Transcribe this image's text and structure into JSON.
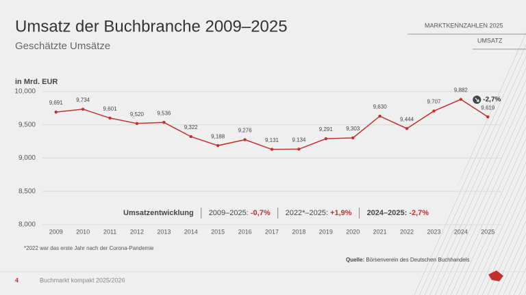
{
  "slide": {
    "title": "Umsatz der Buchbranche 2009–2025",
    "subtitle": "Geschätzte Umsätze",
    "section": "MARKTKENNZAHLEN 2025",
    "topic": "UMSATZ",
    "footnote": "*2022 war das erste Jahr nach der Corona-Pandemie",
    "source_label": "Quelle:",
    "source": "Börsenverein des Deutschen Buchhandels",
    "page": "4",
    "footer": "Buchmarkt kompakt 2025/2026"
  },
  "chart_data": {
    "type": "line",
    "y_label": "in Mrd. EUR",
    "categories": [
      "2009",
      "2010",
      "2011",
      "2012",
      "2013",
      "2014",
      "2015",
      "2016",
      "2017",
      "2018",
      "2019",
      "2020",
      "2021",
      "2022",
      "2023",
      "2024",
      "2025"
    ],
    "series": [
      {
        "name": "Umsatz",
        "color": "#c0302c",
        "values": [
          9.691,
          9.734,
          9.601,
          9.52,
          9.536,
          9.322,
          9.188,
          9.276,
          9.131,
          9.134,
          9.291,
          9.303,
          9.63,
          9.444,
          9.707,
          9.882,
          9.619
        ],
        "value_labels": [
          "9,691",
          "9,734",
          "9,601",
          "9,520",
          "9,536",
          "9,322",
          "9,188",
          "9,276",
          "9,131",
          "9,134",
          "9,291",
          "9,303",
          "9,630",
          "9,444",
          "9,707",
          "9,882",
          "9,619"
        ]
      }
    ],
    "ylim": [
      8,
      10
    ],
    "yticks": [
      {
        "value": 8,
        "label": "8,000"
      },
      {
        "value": 8.5,
        "label": "8,500"
      },
      {
        "value": 9,
        "label": "9,000"
      },
      {
        "value": 9.5,
        "label": "9,500"
      },
      {
        "value": 10,
        "label": "10,000"
      }
    ],
    "grid": true,
    "annotation": "-2,7%",
    "summary": {
      "label": "Umsatzentwicklung",
      "items": [
        {
          "period": "2009–2025: ",
          "change": "-0,7%"
        },
        {
          "period": "2022*–2025: ",
          "change": "+1,9%"
        },
        {
          "period": "2024–2025: ",
          "change": "-2,7%"
        }
      ]
    }
  }
}
